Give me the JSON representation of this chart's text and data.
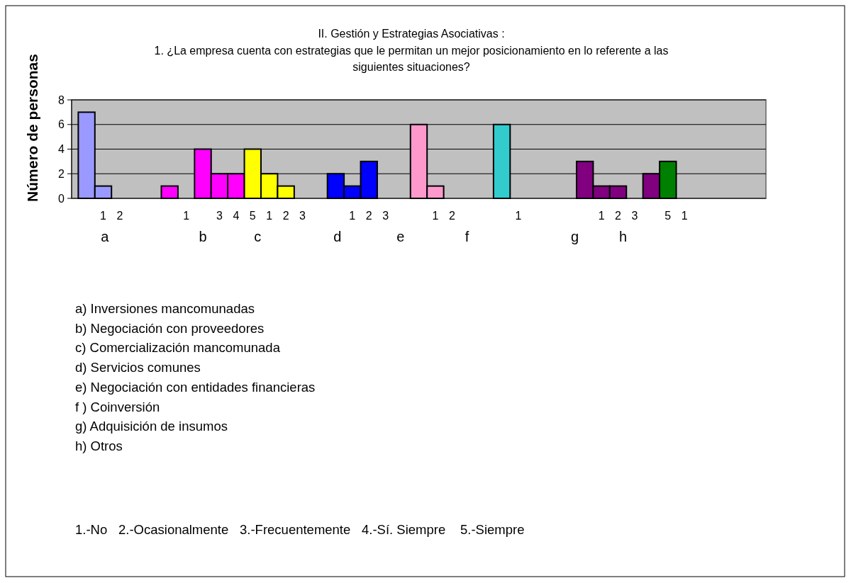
{
  "chart_data": {
    "type": "bar",
    "title": "II. Gestión y  Estrategias Asociativas :",
    "subtitle": "1. ¿La empresa cuenta con estrategias que le permitan un mejor posicionamiento en lo referente a las siguientes situaciones?",
    "ylabel": "Número de personas",
    "categories": [
      null,
      "1",
      "2",
      null,
      null,
      null,
      "1",
      null,
      "3",
      "4",
      "5",
      "1",
      "2",
      "3",
      null,
      null,
      "1",
      "2",
      "3",
      null,
      null,
      "1",
      "2",
      null,
      null,
      null,
      "1",
      null,
      null,
      null,
      null,
      "1",
      "2",
      "3",
      null,
      "5",
      "1",
      null,
      null,
      null,
      null
    ],
    "values": [
      7,
      1,
      null,
      null,
      null,
      1,
      null,
      4,
      2,
      2,
      4,
      2,
      1,
      null,
      null,
      2,
      1,
      3,
      null,
      null,
      6,
      1,
      null,
      null,
      null,
      6,
      null,
      null,
      null,
      null,
      3,
      1,
      1,
      null,
      2,
      3,
      null,
      null,
      null,
      null,
      null
    ],
    "colors": [
      "#9999ff",
      "#9999ff",
      null,
      null,
      null,
      "#ff00ff",
      null,
      "#ff00ff",
      "#ff00ff",
      "#ff00ff",
      "#ffff00",
      "#ffff00",
      "#ffff00",
      null,
      null,
      "#0000ff",
      "#0000ff",
      "#0000ff",
      null,
      null,
      "#ff99cc",
      "#ff99cc",
      null,
      null,
      null,
      "#33cccc",
      null,
      null,
      null,
      null,
      "#800080",
      "#800080",
      "#800080",
      null,
      "#800080",
      "#008000",
      null,
      null,
      null,
      null,
      null
    ],
    "ylim": [
      0,
      8
    ],
    "yticks": [
      0,
      2,
      4,
      6,
      8
    ],
    "grid": "y",
    "annotations": [
      "a",
      "b",
      "c",
      "d",
      "e",
      "f",
      "g",
      "h",
      "a) Inversiones mancomunadas",
      "b) Negociación con proveedores",
      "c) Comercialización mancomunada",
      "d) Servicios comunes",
      "e) Negociación con entidades financieras",
      "f ) Coinversión",
      "g) Adquisición de insumos",
      "h) Otros",
      "1.-No",
      "2.-Ocasionalmente",
      "3.-Frecuentemente",
      "4.-Sí. Siempre",
      "5.-Siempre"
    ]
  }
}
